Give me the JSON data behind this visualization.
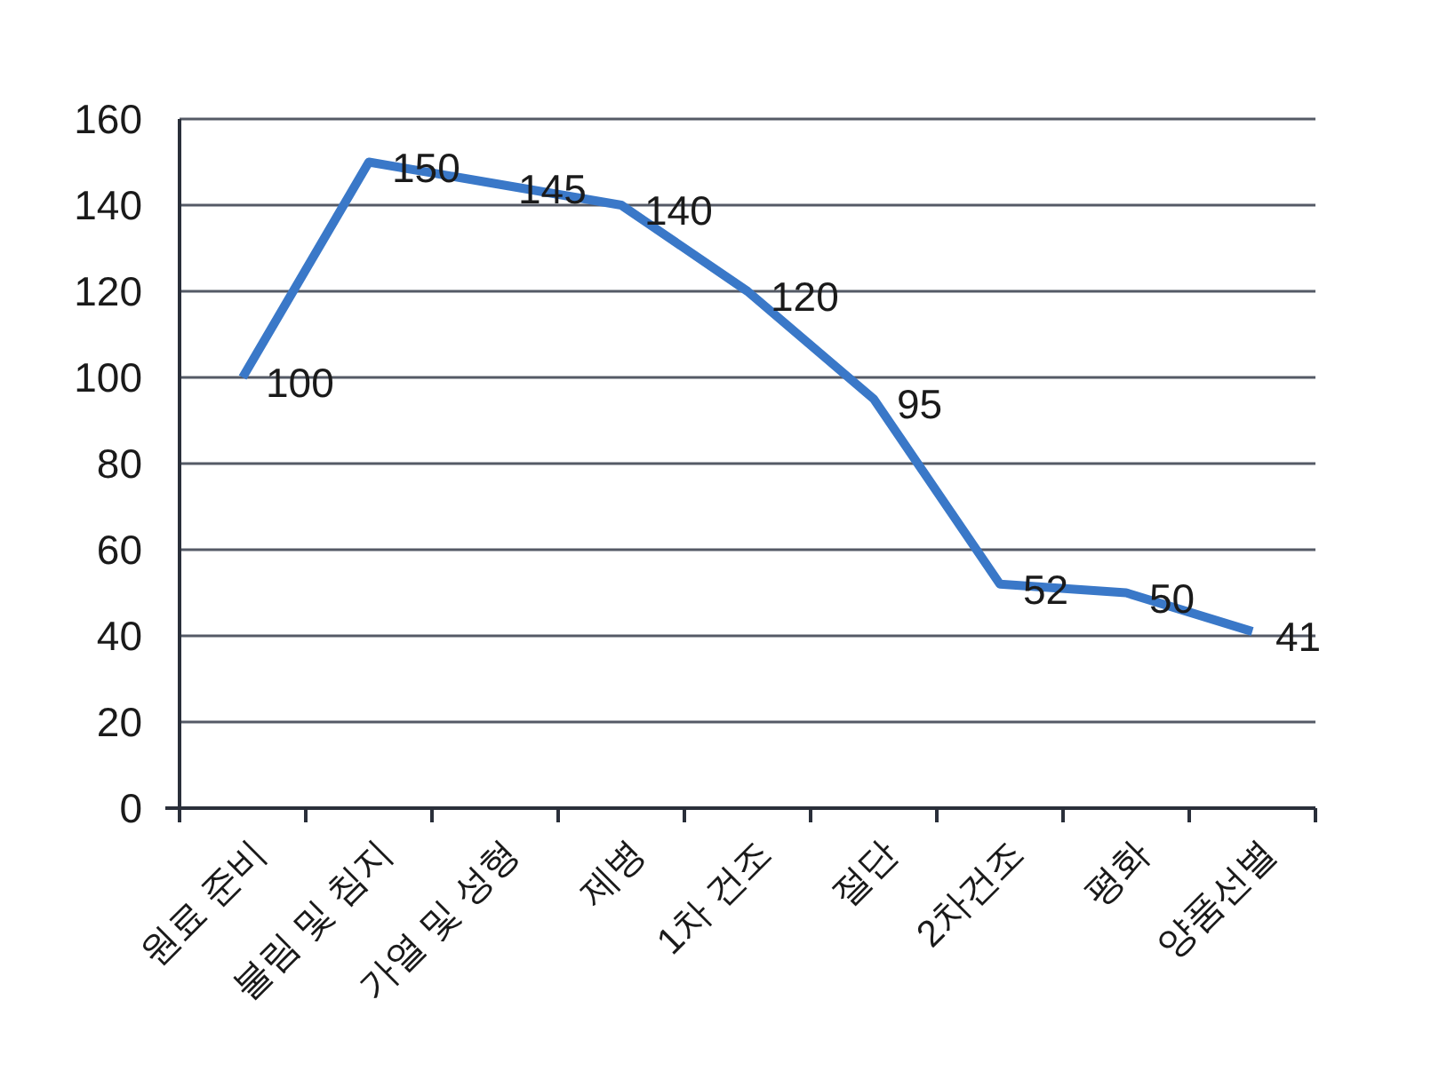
{
  "chart_data": {
    "type": "line",
    "categories": [
      "원료 준비",
      "불림 및 침지",
      "가열 및 성형",
      "제병",
      "1차 건조",
      "절단",
      "2차건조",
      "평화",
      "양품선별"
    ],
    "series": [
      {
        "color": "#3a78c8",
        "values": [
          100,
          150,
          145,
          140,
          120,
          95,
          52,
          50,
          41
        ]
      }
    ],
    "ylim": [
      0,
      160
    ],
    "yticks": [
      0,
      20,
      40,
      60,
      80,
      100,
      120,
      140,
      160
    ],
    "grid": "y",
    "data_labels": true,
    "line_style": "solid"
  }
}
